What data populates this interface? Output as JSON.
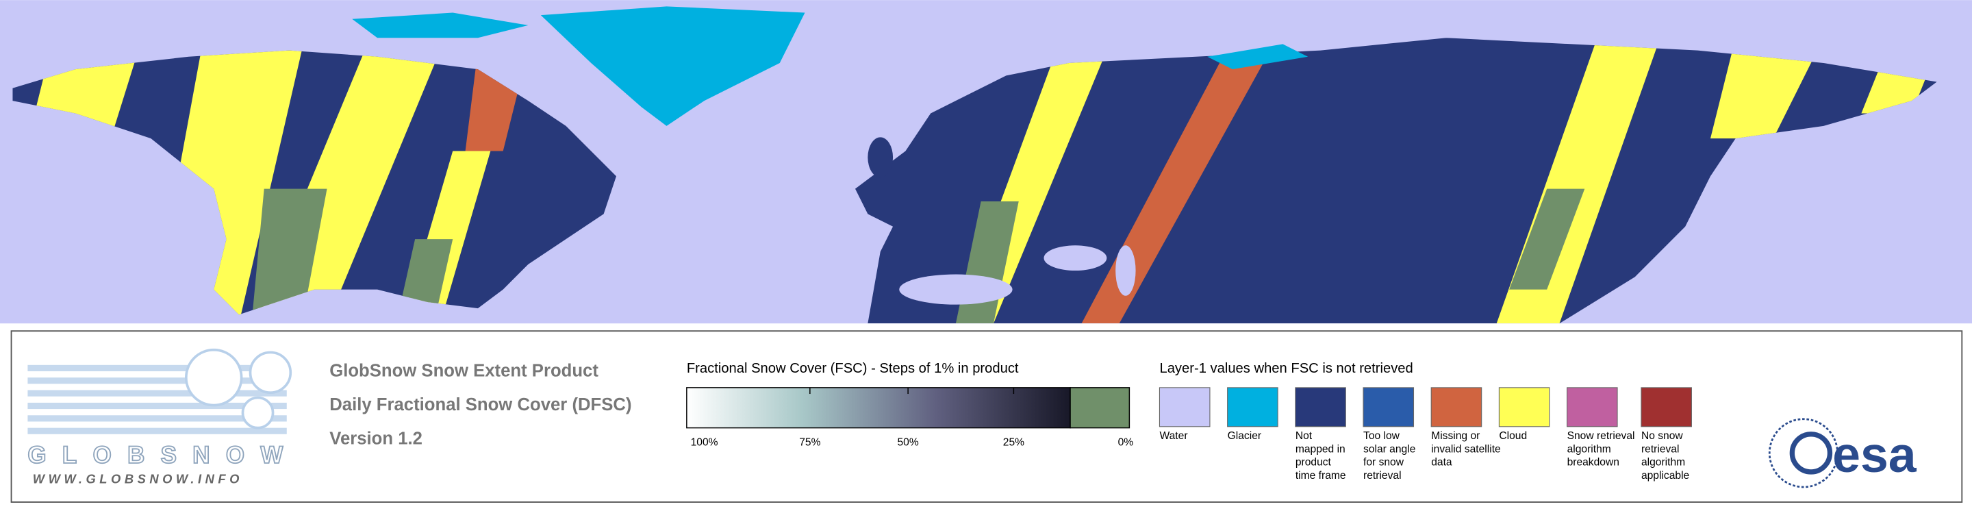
{
  "logo": {
    "name": "GLOBSNOW",
    "url": "WWW.GLOBSNOW.INFO"
  },
  "product": {
    "title": "GlobSnow Snow Extent Product",
    "subtitle": "Daily Fractional Snow Cover (DFSC)",
    "version": "Version 1.2"
  },
  "fsc_legend": {
    "title": "Fractional Snow Cover (FSC) - Steps of 1% in product",
    "tick_labels": [
      "100%",
      "75%",
      "50%",
      "25%",
      "0%"
    ]
  },
  "layer1_legend": {
    "title": "Layer-1 values when FSC is not retrieved",
    "items": [
      {
        "color": "#c8c8f8",
        "label": [
          "Water"
        ]
      },
      {
        "color": "#00b0e0",
        "label": [
          "Glacier"
        ]
      },
      {
        "color": "#28397a",
        "label": [
          "Not",
          "mapped in",
          "product",
          "time frame"
        ]
      },
      {
        "color": "#2a5caa",
        "label": [
          "Too low",
          "solar angle",
          "for snow",
          "retrieval"
        ]
      },
      {
        "color": "#d06440",
        "label": [
          "Missing or",
          "invalid satellite",
          "data"
        ]
      },
      {
        "color": "#ffff55",
        "label": [
          "Cloud"
        ]
      },
      {
        "color": "#c060a0",
        "label": [
          "Snow retrieval",
          "algorithm",
          "breakdown"
        ]
      },
      {
        "color": "#a03030",
        "label": [
          "No snow",
          "retrieval",
          "algorithm",
          "applicable"
        ]
      }
    ]
  },
  "agency": {
    "name": "esa"
  }
}
